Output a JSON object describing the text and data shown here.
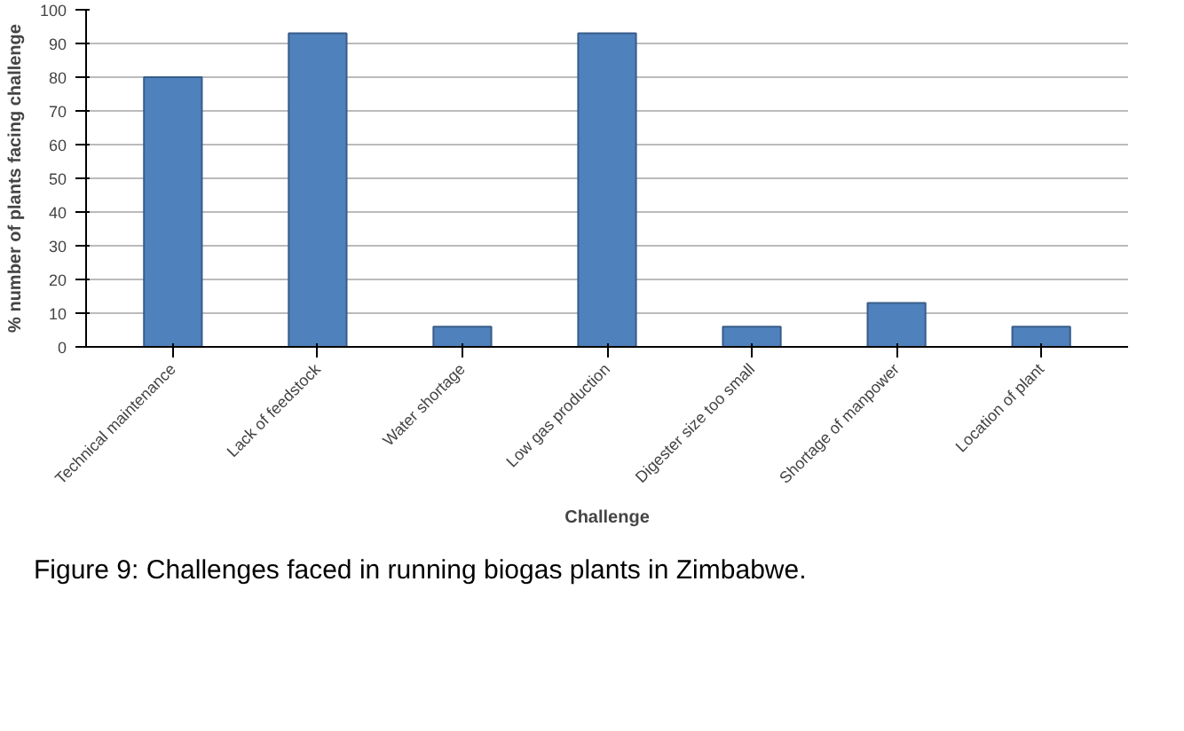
{
  "chart_data": {
    "type": "bar",
    "xlabel": "Challenge",
    "ylabel": "% number of plants facing challenge",
    "categories": [
      "Technical maintenance",
      "Lack of feedstock",
      "Water shortage",
      "Low gas production",
      "Digester size too small",
      "Shortage of manpower",
      "Location of plant"
    ],
    "values": [
      80,
      93,
      6,
      93,
      6,
      13,
      6
    ],
    "color": "#4f81bd",
    "ylim": [
      0,
      100
    ],
    "yticks": [
      0,
      10,
      20,
      30,
      40,
      50,
      60,
      70,
      80,
      90,
      100
    ],
    "grid": "y",
    "annotations": [
      "Figure 9: Challenges faced in running biogas plants in Zimbabwe."
    ]
  }
}
